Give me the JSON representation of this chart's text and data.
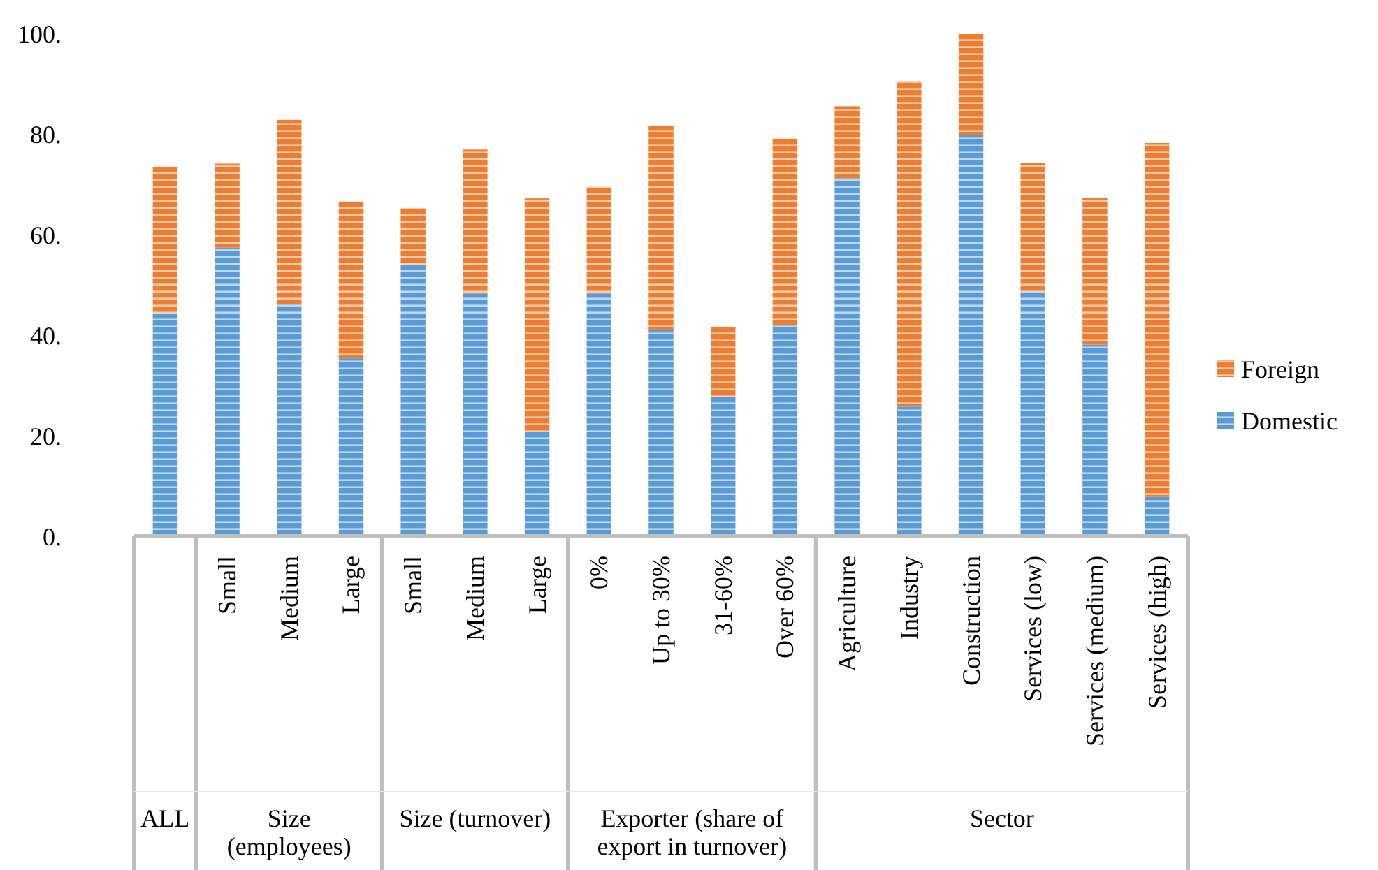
{
  "chart_data": {
    "type": "bar",
    "stacked": true,
    "categories": [
      null,
      "Small",
      "Medium",
      "Large",
      "Small",
      "Medium",
      "Large",
      "0%",
      "Up to 30%",
      "31-60%",
      "Over 60%",
      "Agriculture",
      "Industry",
      "Construction",
      "Services (low)",
      "Services (medium)",
      "Services (high)"
    ],
    "series": [
      {
        "name": "Domestic",
        "color": "#5b9bd5",
        "values": [
          44.4,
          57.4,
          46.1,
          35.4,
          54.1,
          48.3,
          20.8,
          48.3,
          41.1,
          27.8,
          42.0,
          71.2,
          25.8,
          79.8,
          48.7,
          38.1,
          7.8
        ]
      },
      {
        "name": "Foreign",
        "color": "#ed7d31",
        "values": [
          29.1,
          16.7,
          36.7,
          31.2,
          11.2,
          28.6,
          46.4,
          21.2,
          40.5,
          13.9,
          37.1,
          14.3,
          64.7,
          20.1,
          25.6,
          29.2,
          70.4
        ]
      }
    ],
    "ylim": [
      0,
      100
    ],
    "yticks": [
      {
        "value": 0,
        "label": "0."
      },
      {
        "value": 20,
        "label": "20."
      },
      {
        "value": 40,
        "label": "40."
      },
      {
        "value": 60,
        "label": "60."
      },
      {
        "value": 80,
        "label": "80."
      },
      {
        "value": 100,
        "label": "100."
      }
    ],
    "grid": false,
    "legend": "right",
    "annotations": [
      "ALL",
      "Size (employees)",
      "Size (turnover)",
      "Exporter (share of export in turnover)",
      "Sector"
    ]
  }
}
